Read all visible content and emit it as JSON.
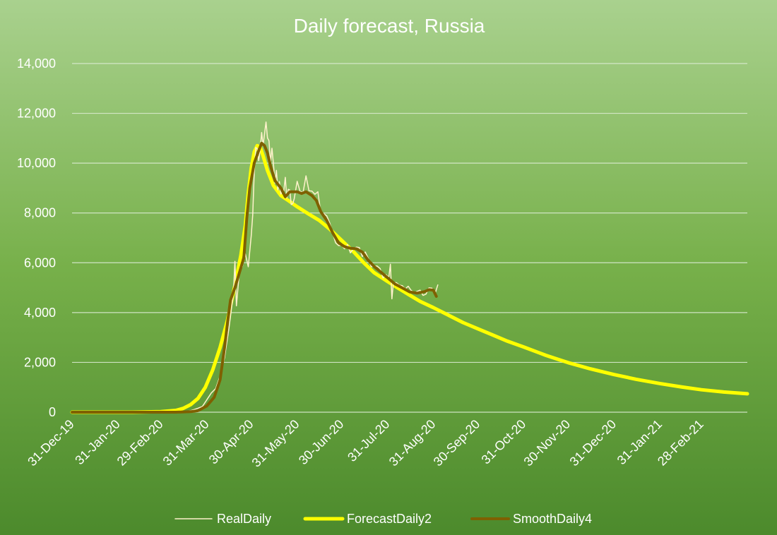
{
  "chart_data": {
    "type": "line",
    "title": "Daily forecast, Russia",
    "xlabel": "",
    "ylabel": "",
    "ylim": [
      0,
      14000
    ],
    "y_ticks": [
      0,
      2000,
      4000,
      6000,
      8000,
      10000,
      12000,
      14000
    ],
    "y_tick_labels": [
      "0",
      "2,000",
      "4,000",
      "6,000",
      "8,000",
      "10,000",
      "12,000",
      "14,000"
    ],
    "x_range": [
      "2019-12-31",
      "2021-03-31"
    ],
    "x_ticks": [
      "2019-12-31",
      "2020-01-31",
      "2020-02-29",
      "2020-03-31",
      "2020-04-30",
      "2020-05-31",
      "2020-06-30",
      "2020-07-31",
      "2020-08-31",
      "2020-09-30",
      "2020-10-31",
      "2020-11-30",
      "2020-12-31",
      "2021-01-31",
      "2021-02-28"
    ],
    "x_tick_labels": [
      "31-Dec-19",
      "31-Jan-20",
      "29-Feb-20",
      "31-Mar-20",
      "30-Apr-20",
      "31-May-20",
      "30-Jun-20",
      "31-Jul-20",
      "31-Aug-20",
      "30-Sep-20",
      "31-Oct-20",
      "30-Nov-20",
      "31-Dec-20",
      "31-Jan-21",
      "28-Feb-21"
    ],
    "grid": true,
    "legend_position": "bottom",
    "series": [
      {
        "name": "RealDaily",
        "color": "#fff2cc",
        "points": [
          [
            "2019-12-31",
            0
          ],
          [
            "2020-03-01",
            0
          ],
          [
            "2020-03-10",
            5
          ],
          [
            "2020-03-15",
            20
          ],
          [
            "2020-03-20",
            60
          ],
          [
            "2020-03-25",
            160
          ],
          [
            "2020-03-28",
            230
          ],
          [
            "2020-03-31",
            500
          ],
          [
            "2020-04-03",
            770
          ],
          [
            "2020-04-06",
            950
          ],
          [
            "2020-04-09",
            1460
          ],
          [
            "2020-04-12",
            2190
          ],
          [
            "2020-04-15",
            3390
          ],
          [
            "2020-04-18",
            4780
          ],
          [
            "2020-04-19",
            6060
          ],
          [
            "2020-04-20",
            4270
          ],
          [
            "2020-04-22",
            5640
          ],
          [
            "2020-04-24",
            5850
          ],
          [
            "2020-04-26",
            6360
          ],
          [
            "2020-04-28",
            5840
          ],
          [
            "2020-04-30",
            7100
          ],
          [
            "2020-05-01",
            7930
          ],
          [
            "2020-05-02",
            9620
          ],
          [
            "2020-05-03",
            10630
          ],
          [
            "2020-05-04",
            10580
          ],
          [
            "2020-05-05",
            10100
          ],
          [
            "2020-05-06",
            10560
          ],
          [
            "2020-05-07",
            11230
          ],
          [
            "2020-05-08",
            10700
          ],
          [
            "2020-05-10",
            11650
          ],
          [
            "2020-05-11",
            11010
          ],
          [
            "2020-05-12",
            10900
          ],
          [
            "2020-05-13",
            10030
          ],
          [
            "2020-05-14",
            10600
          ],
          [
            "2020-05-15",
            9970
          ],
          [
            "2020-05-16",
            9200
          ],
          [
            "2020-05-17",
            9710
          ],
          [
            "2020-05-18",
            8930
          ],
          [
            "2020-05-19",
            9260
          ],
          [
            "2020-05-20",
            8760
          ],
          [
            "2020-05-21",
            8850
          ],
          [
            "2020-05-22",
            8890
          ],
          [
            "2020-05-23",
            9430
          ],
          [
            "2020-05-24",
            8600
          ],
          [
            "2020-05-25",
            8950
          ],
          [
            "2020-05-26",
            8920
          ],
          [
            "2020-05-27",
            8340
          ],
          [
            "2020-05-28",
            8370
          ],
          [
            "2020-05-29",
            8570
          ],
          [
            "2020-05-31",
            9270
          ],
          [
            "2020-06-02",
            8860
          ],
          [
            "2020-06-04",
            8830
          ],
          [
            "2020-06-06",
            9490
          ],
          [
            "2020-06-08",
            8890
          ],
          [
            "2020-06-10",
            8880
          ],
          [
            "2020-06-12",
            8750
          ],
          [
            "2020-06-14",
            8850
          ],
          [
            "2020-06-16",
            8000
          ],
          [
            "2020-06-18",
            7970
          ],
          [
            "2020-06-20",
            7880
          ],
          [
            "2020-06-22",
            7600
          ],
          [
            "2020-06-24",
            7180
          ],
          [
            "2020-06-26",
            6800
          ],
          [
            "2020-06-28",
            6690
          ],
          [
            "2020-06-30",
            6700
          ],
          [
            "2020-07-02",
            6560
          ],
          [
            "2020-07-04",
            6730
          ],
          [
            "2020-07-06",
            6400
          ],
          [
            "2020-07-08",
            6560
          ],
          [
            "2020-07-10",
            6630
          ],
          [
            "2020-07-12",
            6610
          ],
          [
            "2020-07-14",
            6250
          ],
          [
            "2020-07-16",
            6430
          ],
          [
            "2020-07-18",
            6180
          ],
          [
            "2020-07-20",
            5840
          ],
          [
            "2020-07-22",
            5860
          ],
          [
            "2020-07-24",
            5870
          ],
          [
            "2020-07-26",
            5770
          ],
          [
            "2020-07-28",
            5390
          ],
          [
            "2020-07-30",
            5520
          ],
          [
            "2020-07-31",
            5460
          ],
          [
            "2020-08-01",
            5450
          ],
          [
            "2020-08-02",
            5940
          ],
          [
            "2020-08-03",
            4550
          ],
          [
            "2020-08-04",
            5200
          ],
          [
            "2020-08-06",
            5200
          ],
          [
            "2020-08-08",
            5100
          ],
          [
            "2020-08-10",
            5080
          ],
          [
            "2020-08-12",
            4950
          ],
          [
            "2020-08-14",
            5060
          ],
          [
            "2020-08-16",
            4890
          ],
          [
            "2020-08-18",
            4800
          ],
          [
            "2020-08-20",
            4850
          ],
          [
            "2020-08-22",
            4900
          ],
          [
            "2020-08-24",
            4690
          ],
          [
            "2020-08-26",
            4740
          ],
          [
            "2020-08-28",
            4990
          ],
          [
            "2020-08-30",
            4980
          ],
          [
            "2020-09-01",
            4730
          ],
          [
            "2020-09-03",
            5110
          ]
        ]
      },
      {
        "name": "ForecastDaily2",
        "color": "#ffff00",
        "points": [
          [
            "2019-12-31",
            0
          ],
          [
            "2020-02-10",
            0
          ],
          [
            "2020-02-29",
            20
          ],
          [
            "2020-03-10",
            70
          ],
          [
            "2020-03-15",
            150
          ],
          [
            "2020-03-20",
            300
          ],
          [
            "2020-03-25",
            550
          ],
          [
            "2020-03-30",
            1000
          ],
          [
            "2020-04-04",
            1700
          ],
          [
            "2020-04-09",
            2600
          ],
          [
            "2020-04-14",
            3700
          ],
          [
            "2020-04-19",
            5100
          ],
          [
            "2020-04-23",
            6300
          ],
          [
            "2020-04-26",
            7500
          ],
          [
            "2020-04-28",
            8800
          ],
          [
            "2020-04-30",
            9800
          ],
          [
            "2020-05-02",
            10450
          ],
          [
            "2020-05-04",
            10700
          ],
          [
            "2020-05-06",
            10650
          ],
          [
            "2020-05-08",
            10300
          ],
          [
            "2020-05-11",
            9700
          ],
          [
            "2020-05-15",
            9100
          ],
          [
            "2020-05-20",
            8700
          ],
          [
            "2020-05-25",
            8500
          ],
          [
            "2020-05-31",
            8250
          ],
          [
            "2020-06-08",
            7950
          ],
          [
            "2020-06-15",
            7700
          ],
          [
            "2020-06-22",
            7350
          ],
          [
            "2020-06-30",
            6900
          ],
          [
            "2020-07-08",
            6450
          ],
          [
            "2020-07-15",
            6000
          ],
          [
            "2020-07-22",
            5600
          ],
          [
            "2020-07-31",
            5250
          ],
          [
            "2020-08-08",
            4950
          ],
          [
            "2020-08-15",
            4700
          ],
          [
            "2020-08-22",
            4450
          ],
          [
            "2020-08-31",
            4200
          ],
          [
            "2020-09-10",
            3900
          ],
          [
            "2020-09-20",
            3600
          ],
          [
            "2020-09-30",
            3350
          ],
          [
            "2020-10-10",
            3100
          ],
          [
            "2020-10-20",
            2850
          ],
          [
            "2020-10-31",
            2620
          ],
          [
            "2020-11-15",
            2280
          ],
          [
            "2020-11-30",
            1990
          ],
          [
            "2020-12-15",
            1740
          ],
          [
            "2020-12-31",
            1510
          ],
          [
            "2021-01-15",
            1320
          ],
          [
            "2021-01-31",
            1150
          ],
          [
            "2021-02-15",
            1010
          ],
          [
            "2021-02-28",
            900
          ],
          [
            "2021-03-15",
            810
          ],
          [
            "2021-03-31",
            740
          ]
        ]
      },
      {
        "name": "SmoothDaily4",
        "color": "#7f6000",
        "points": [
          [
            "2019-12-31",
            0
          ],
          [
            "2020-03-10",
            0
          ],
          [
            "2020-03-20",
            20
          ],
          [
            "2020-03-25",
            60
          ],
          [
            "2020-03-31",
            250
          ],
          [
            "2020-04-05",
            600
          ],
          [
            "2020-04-09",
            1300
          ],
          [
            "2020-04-12",
            2600
          ],
          [
            "2020-04-14",
            3600
          ],
          [
            "2020-04-16",
            4500
          ],
          [
            "2020-04-19",
            5000
          ],
          [
            "2020-04-22",
            5600
          ],
          [
            "2020-04-25",
            6200
          ],
          [
            "2020-04-27",
            7800
          ],
          [
            "2020-04-29",
            9000
          ],
          [
            "2020-05-02",
            10000
          ],
          [
            "2020-05-05",
            10500
          ],
          [
            "2020-05-07",
            10800
          ],
          [
            "2020-05-09",
            10700
          ],
          [
            "2020-05-11",
            10400
          ],
          [
            "2020-05-13",
            9900
          ],
          [
            "2020-05-16",
            9300
          ],
          [
            "2020-05-20",
            9000
          ],
          [
            "2020-05-23",
            8650
          ],
          [
            "2020-05-26",
            8850
          ],
          [
            "2020-05-31",
            8850
          ],
          [
            "2020-06-03",
            8780
          ],
          [
            "2020-06-06",
            8850
          ],
          [
            "2020-06-10",
            8700
          ],
          [
            "2020-06-13",
            8500
          ],
          [
            "2020-06-16",
            8050
          ],
          [
            "2020-06-20",
            7700
          ],
          [
            "2020-06-24",
            7200
          ],
          [
            "2020-06-28",
            6800
          ],
          [
            "2020-07-02",
            6650
          ],
          [
            "2020-07-06",
            6580
          ],
          [
            "2020-07-10",
            6560
          ],
          [
            "2020-07-14",
            6430
          ],
          [
            "2020-07-18",
            6100
          ],
          [
            "2020-07-22",
            5850
          ],
          [
            "2020-07-26",
            5650
          ],
          [
            "2020-07-31",
            5400
          ],
          [
            "2020-08-05",
            5150
          ],
          [
            "2020-08-10",
            4990
          ],
          [
            "2020-08-15",
            4830
          ],
          [
            "2020-08-20",
            4780
          ],
          [
            "2020-08-25",
            4840
          ],
          [
            "2020-08-28",
            4920
          ],
          [
            "2020-08-31",
            4900
          ],
          [
            "2020-09-02",
            4650
          ]
        ]
      }
    ]
  }
}
